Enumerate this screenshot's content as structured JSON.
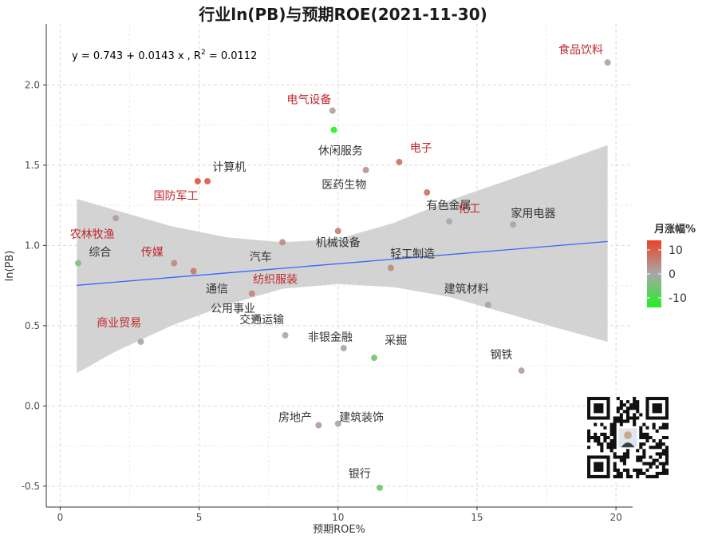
{
  "chart_data": {
    "type": "scatter",
    "title": "行业ln(PB)与预期ROE(2021-11-30)",
    "xlabel": "预期ROE%",
    "ylabel": "ln(PB)",
    "xlim": [
      -0.5,
      20.6
    ],
    "ylim": [
      -0.63,
      2.38
    ],
    "x_ticks": [
      0,
      5,
      10,
      15,
      20
    ],
    "y_ticks": [
      -0.5,
      0.0,
      0.5,
      1.0,
      1.5,
      2.0
    ],
    "x_tick_labels": [
      "0",
      "5",
      "10",
      "15",
      "20"
    ],
    "y_tick_labels": [
      "-0.5",
      "0.0",
      "0.5",
      "1.0",
      "1.5",
      "2.0"
    ],
    "grid": true,
    "equation": {
      "prefix": "y = 0.743 + 0.0143 x , R",
      "superscript": "2",
      "suffix": " = 0.0112"
    },
    "regression": {
      "intercept": 0.743,
      "slope": 0.0143,
      "x_range": [
        0.6,
        19.7
      ],
      "color": "#3366ff"
    },
    "confidence_band": {
      "color": "#d3d3d3",
      "points": [
        {
          "x": 0.6,
          "lower": 0.205,
          "upper": 1.29
        },
        {
          "x": 2.0,
          "lower": 0.34,
          "upper": 1.22
        },
        {
          "x": 4.0,
          "lower": 0.5,
          "upper": 1.12
        },
        {
          "x": 6.0,
          "lower": 0.63,
          "upper": 1.05
        },
        {
          "x": 8.0,
          "lower": 0.73,
          "upper": 1.02
        },
        {
          "x": 10.0,
          "lower": 0.76,
          "upper": 1.04
        },
        {
          "x": 12.0,
          "lower": 0.74,
          "upper": 1.14
        },
        {
          "x": 14.0,
          "lower": 0.68,
          "upper": 1.28
        },
        {
          "x": 16.0,
          "lower": 0.58,
          "upper": 1.4
        },
        {
          "x": 18.0,
          "lower": 0.48,
          "upper": 1.52
        },
        {
          "x": 19.7,
          "lower": 0.4,
          "upper": 1.625
        }
      ]
    },
    "legend": {
      "title": "月涨幅%",
      "min": -14,
      "max": 14,
      "ticks": [
        10,
        0,
        -10
      ],
      "tick_labels": [
        "10",
        "0",
        "-10"
      ],
      "colors": {
        "high": "#e8442a",
        "mid": "#a8a8a8",
        "low": "#22ee22"
      },
      "placement": "right"
    },
    "label_colors": {
      "up": "#c0272d",
      "flat": "#333333"
    },
    "points": [
      {
        "name": "食品饮料",
        "x": 19.7,
        "y": 2.14,
        "change": 0.3,
        "label_color": "up"
      },
      {
        "name": "电气设备",
        "x": 9.8,
        "y": 1.84,
        "change": 1.5,
        "label_color": "up"
      },
      {
        "name": "休闲服务",
        "x": 9.85,
        "y": 1.72,
        "change": -14,
        "label_color": "flat"
      },
      {
        "name": "电子",
        "x": 12.2,
        "y": 1.52,
        "change": 8,
        "label_color": "up"
      },
      {
        "name": "医药生物",
        "x": 11.0,
        "y": 1.47,
        "change": 3,
        "label_color": "flat"
      },
      {
        "name": "计算机",
        "x": 5.3,
        "y": 1.4,
        "change": 11,
        "label_color": "flat"
      },
      {
        "name": "国防军工",
        "x": 4.95,
        "y": 1.4,
        "change": 12,
        "label_color": "up"
      },
      {
        "name": "有色金属",
        "x": 13.2,
        "y": 1.33,
        "change": 8,
        "label_color": "flat"
      },
      {
        "name": "农林牧渔",
        "x": 2.0,
        "y": 1.17,
        "change": 1.5,
        "label_color": "up"
      },
      {
        "name": "化工",
        "x": 14.0,
        "y": 1.15,
        "change": 0,
        "label_color": "up"
      },
      {
        "name": "家用电器",
        "x": 16.3,
        "y": 1.13,
        "change": 0.5,
        "label_color": "flat"
      },
      {
        "name": "机械设备",
        "x": 10.0,
        "y": 1.09,
        "change": 6,
        "label_color": "flat"
      },
      {
        "name": "汽车",
        "x": 8.0,
        "y": 1.02,
        "change": 4,
        "label_color": "flat"
      },
      {
        "name": "综合",
        "x": 0.65,
        "y": 0.89,
        "change": -4,
        "label_color": "flat"
      },
      {
        "name": "传媒",
        "x": 4.1,
        "y": 0.89,
        "change": 4,
        "label_color": "up"
      },
      {
        "name": "轻工制造",
        "x": 11.9,
        "y": 0.86,
        "change": 4,
        "label_color": "flat"
      },
      {
        "name": "通信",
        "x": 4.8,
        "y": 0.84,
        "change": 7,
        "label_color": "flat"
      },
      {
        "name": "纺织服装",
        "x": 6.9,
        "y": 0.7,
        "change": 5,
        "label_color": "up"
      },
      {
        "name": "建筑材料",
        "x": 15.4,
        "y": 0.63,
        "change": 0.5,
        "label_color": "flat"
      },
      {
        "name": "公用事业",
        "x": 7.0,
        "y": 0.55,
        "change": 0.5,
        "label_color": "flat"
      },
      {
        "name": "交通运输",
        "x": 8.1,
        "y": 0.44,
        "change": -1,
        "label_color": "flat"
      },
      {
        "name": "商业贸易",
        "x": 2.9,
        "y": 0.4,
        "change": 0.5,
        "label_color": "up"
      },
      {
        "name": "非银金融",
        "x": 10.2,
        "y": 0.36,
        "change": 0.5,
        "label_color": "flat"
      },
      {
        "name": "采掘",
        "x": 11.3,
        "y": 0.3,
        "change": -6,
        "label_color": "flat"
      },
      {
        "name": "钢铁",
        "x": 16.6,
        "y": 0.22,
        "change": 1.5,
        "label_color": "flat"
      },
      {
        "name": "建筑装饰",
        "x": 10.0,
        "y": -0.11,
        "change": 0.5,
        "label_color": "flat"
      },
      {
        "name": "房地产",
        "x": 9.3,
        "y": -0.12,
        "change": 2,
        "label_color": "flat"
      },
      {
        "name": "银行",
        "x": 11.5,
        "y": -0.51,
        "change": -6,
        "label_color": "flat"
      }
    ]
  }
}
